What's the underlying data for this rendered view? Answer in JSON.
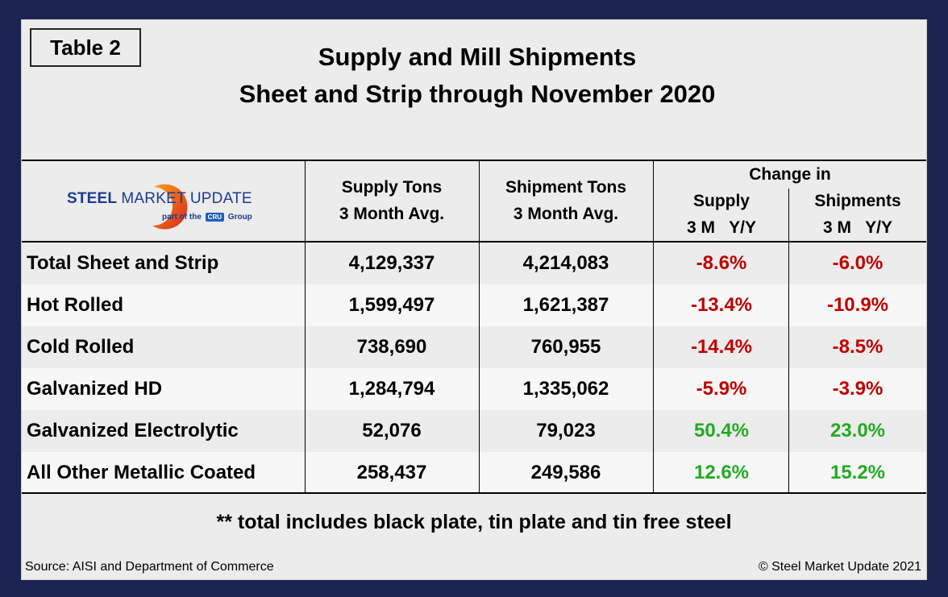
{
  "badge": "Table 2",
  "title": {
    "line1": "Supply and Mill Shipments",
    "line2": "Sheet and Strip through November 2020"
  },
  "logo": {
    "brand_bold": "STEEL ",
    "brand_rest": "MARKET UPDATE",
    "sub_prefix": "part of the",
    "sub_mark": "CRU",
    "sub_suffix": "Group"
  },
  "headers": {
    "supply": [
      "Supply Tons",
      "3 Month Avg."
    ],
    "shipment": [
      "Shipment Tons",
      "3 Month Avg."
    ],
    "change_in": "Change in",
    "change_supply": [
      "Supply",
      "3 M   Y/Y"
    ],
    "change_shipments": [
      "Shipments",
      "3 M   Y/Y"
    ]
  },
  "rows": [
    {
      "label": "Total Sheet and Strip",
      "supply": "4,129,337",
      "shipment": "4,214,083",
      "supply_change": "-8.6%",
      "shipment_change": "-6.0%"
    },
    {
      "label": "Hot Rolled",
      "supply": "1,599,497",
      "shipment": "1,621,387",
      "supply_change": "-13.4%",
      "shipment_change": "-10.9%"
    },
    {
      "label": "Cold Rolled",
      "supply": "738,690",
      "shipment": "760,955",
      "supply_change": "-14.4%",
      "shipment_change": "-8.5%"
    },
    {
      "label": "Galvanized HD",
      "supply": "1,284,794",
      "shipment": "1,335,062",
      "supply_change": "-5.9%",
      "shipment_change": "-3.9%"
    },
    {
      "label": "Galvanized Electrolytic",
      "supply": "52,076",
      "shipment": "79,023",
      "supply_change": "50.4%",
      "shipment_change": "23.0%"
    },
    {
      "label": "All Other Metallic Coated",
      "supply": "258,437",
      "shipment": "249,586",
      "supply_change": "12.6%",
      "shipment_change": "15.2%"
    }
  ],
  "footnote": "** total includes black plate, tin plate and tin free steel",
  "source": "Source: AISI and Department of Commerce",
  "copyright": "© Steel Market Update 2021",
  "colors": {
    "negative": "#c00000",
    "positive": "#22aa22",
    "frame": "#1b2350"
  }
}
